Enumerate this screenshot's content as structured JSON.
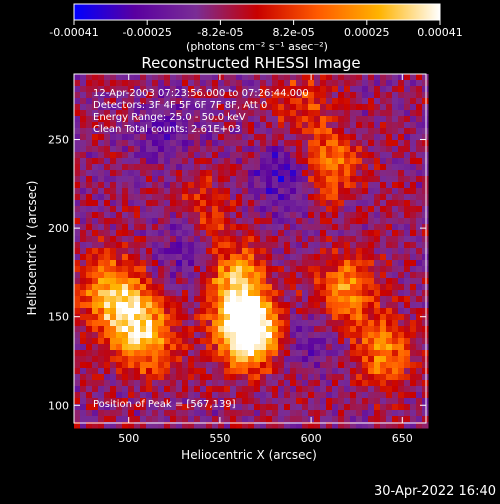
{
  "chart_data": {
    "type": "heatmap",
    "title": "Reconstructed RHESSI Image",
    "xlabel": "Heliocentric X (arcsec)",
    "ylabel": "Heliocentric Y (arcsec)",
    "xlim": [
      470,
      663
    ],
    "ylim": [
      90,
      287
    ],
    "x_ticks": [
      500,
      550,
      600,
      650
    ],
    "y_ticks": [
      100,
      150,
      200,
      250
    ],
    "grid": false,
    "colormap": [
      "#0000ff",
      "#5a00a0",
      "#7a2d96",
      "#c80000",
      "#ff5a00",
      "#ffb300",
      "#ffffff"
    ],
    "colorbar": {
      "range": [
        -0.00041,
        0.00041
      ],
      "tick_labels": [
        "-0.00041",
        "-0.00025",
        "-8.2e-05",
        "8.2e-05",
        "0.00025",
        "0.00041"
      ],
      "unit_label": "(photons cm⁻² s⁻¹ asec⁻²)"
    },
    "annotations": [
      "12-Apr-2003 07:23:56.000 to 07:26:44.000",
      "Detectors: 3F 4F 5F 6F 7F 8F, Att 0",
      "Energy Range: 25.0 - 50.0 keV",
      "Clean    Total counts: 2.61E+03"
    ],
    "peak_label": "Position of Peak = [567,139]",
    "peak": [
      567,
      139
    ],
    "bright_sources": [
      {
        "x": 567,
        "y": 139,
        "level": 1.0
      },
      {
        "x": 562,
        "y": 152,
        "level": 0.85
      },
      {
        "x": 558,
        "y": 175,
        "level": 0.55
      },
      {
        "x": 500,
        "y": 150,
        "level": 0.8
      },
      {
        "x": 488,
        "y": 168,
        "level": 0.65
      },
      {
        "x": 512,
        "y": 135,
        "level": 0.6
      },
      {
        "x": 618,
        "y": 165,
        "level": 0.7
      },
      {
        "x": 640,
        "y": 130,
        "level": 0.65
      },
      {
        "x": 610,
        "y": 235,
        "level": 0.6
      },
      {
        "x": 595,
        "y": 270,
        "level": 0.4
      },
      {
        "x": 540,
        "y": 210,
        "level": 0.35
      }
    ],
    "dark_regions": [
      {
        "x": 585,
        "y": 230,
        "level": -0.45
      },
      {
        "x": 520,
        "y": 255,
        "level": -0.3
      },
      {
        "x": 530,
        "y": 190,
        "level": -0.3
      },
      {
        "x": 600,
        "y": 135,
        "level": -0.3
      }
    ]
  },
  "footer": {
    "timestamp": "30-Apr-2022 16:40"
  }
}
